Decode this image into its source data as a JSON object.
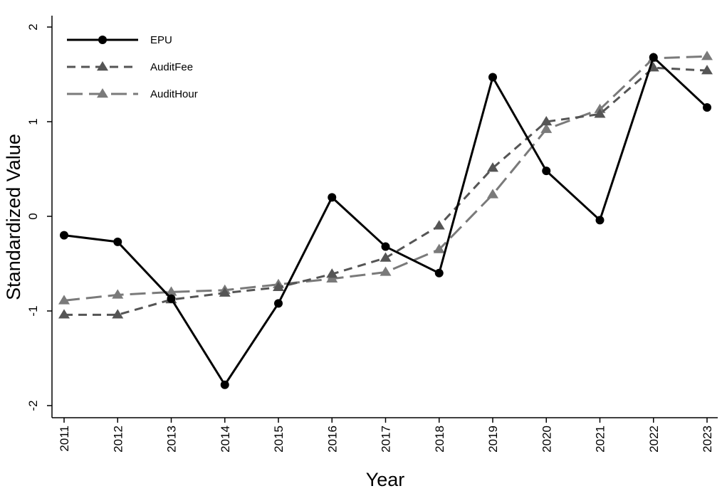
{
  "chart_data": {
    "type": "line",
    "x": [
      2011,
      2012,
      2013,
      2014,
      2015,
      2016,
      2017,
      2018,
      2019,
      2020,
      2021,
      2022,
      2023
    ],
    "xlabel": "Year",
    "ylabel": "Standardized Value",
    "ylim": [
      -2,
      2
    ],
    "yticks": [
      2,
      1,
      0,
      -1,
      -2
    ],
    "grid": false,
    "legend_position": "top-left",
    "series": [
      {
        "name": "EPU",
        "marker": "circle",
        "dash": "solid",
        "color": "#000000",
        "values": [
          -0.2,
          -0.27,
          -0.87,
          -1.78,
          -0.92,
          0.2,
          -0.32,
          -0.6,
          1.47,
          0.48,
          -0.04,
          1.68,
          1.15
        ]
      },
      {
        "name": "AuditFee",
        "marker": "triangle",
        "dash": "short-dash",
        "color": "#555555",
        "values": [
          -1.04,
          -1.04,
          -0.88,
          -0.81,
          -0.75,
          -0.61,
          -0.44,
          -0.1,
          0.51,
          1.0,
          1.08,
          1.57,
          1.54
        ]
      },
      {
        "name": "AuditHour",
        "marker": "triangle",
        "dash": "long-dash",
        "color": "#7a7a7a",
        "values": [
          -0.89,
          -0.83,
          -0.8,
          -0.78,
          -0.72,
          -0.66,
          -0.59,
          -0.35,
          0.23,
          0.92,
          1.13,
          1.67,
          1.69
        ]
      }
    ]
  }
}
